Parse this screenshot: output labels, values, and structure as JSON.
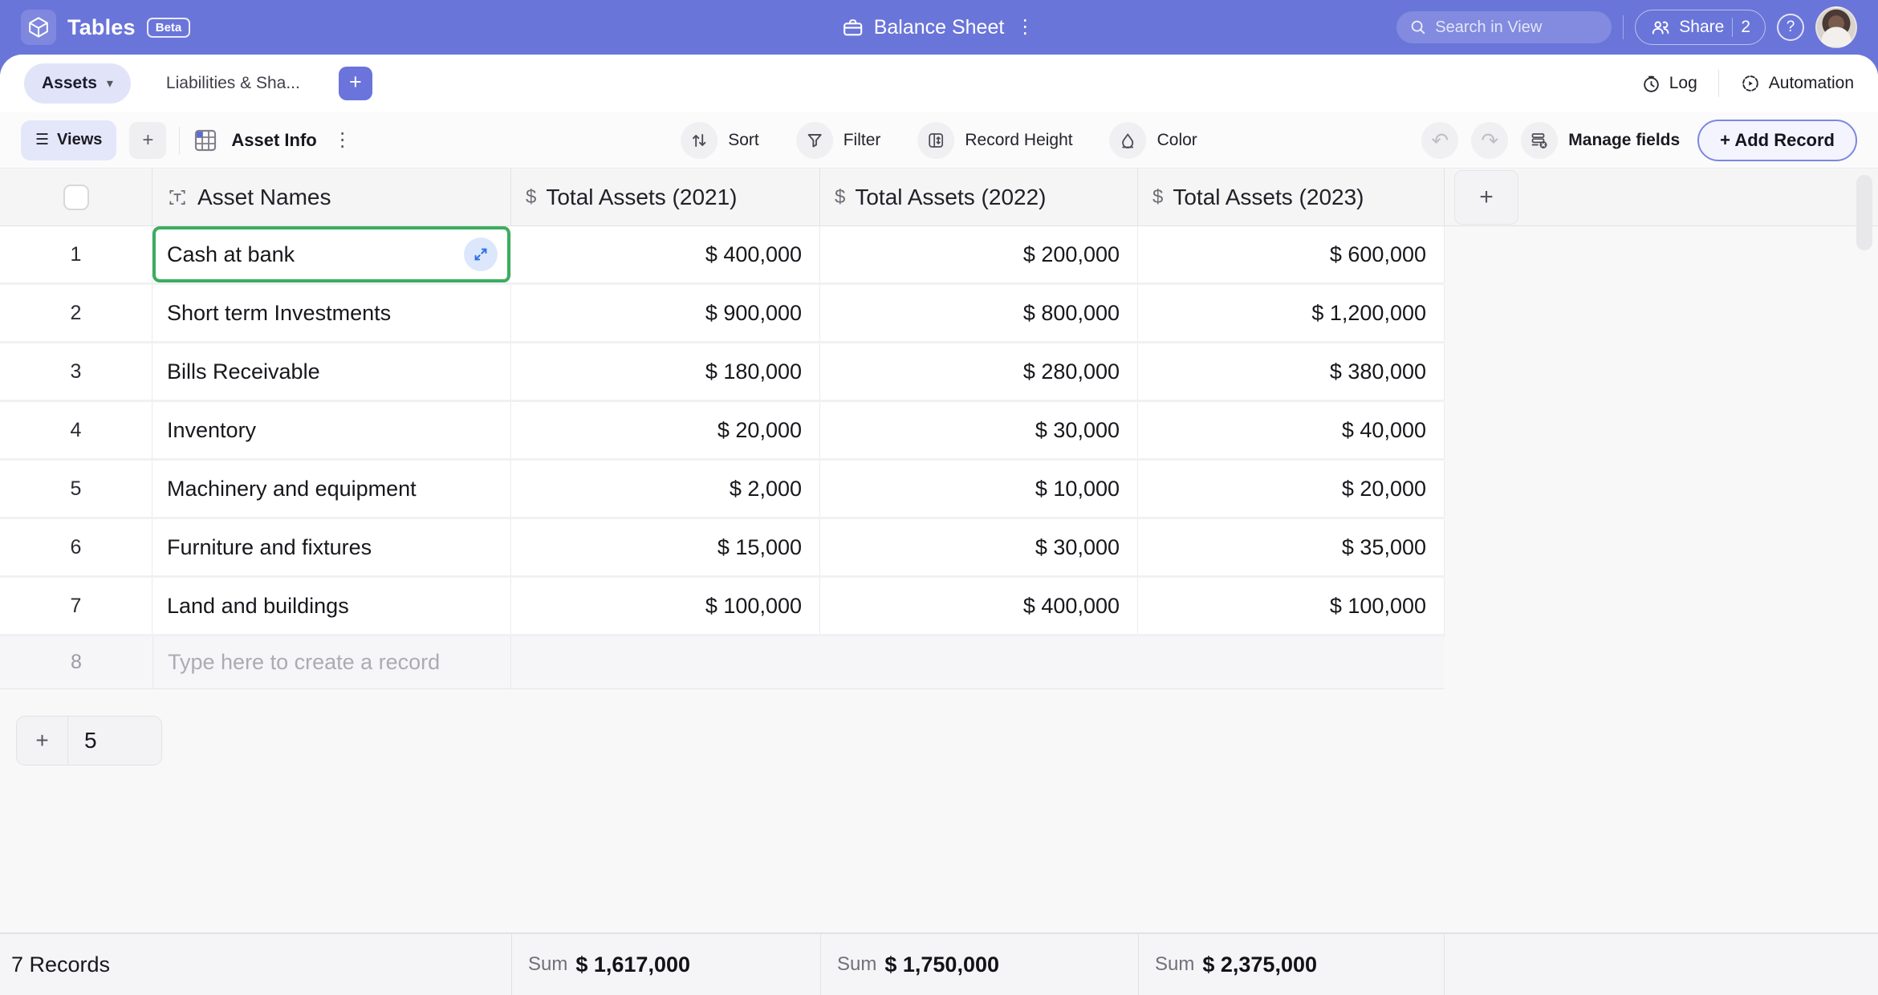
{
  "topbar": {
    "app_name": "Tables",
    "beta_badge": "Beta",
    "doc_title": "Balance Sheet",
    "search_placeholder": "Search in View",
    "share_label": "Share",
    "share_count": "2",
    "help_glyph": "?"
  },
  "tabs": {
    "active_label": "Assets",
    "inactive_label": "Liabilities & Sha...",
    "add_glyph": "+",
    "log_label": "Log",
    "automation_label": "Automation"
  },
  "toolbar": {
    "views_label": "Views",
    "add_view_glyph": "+",
    "view_name": "Asset Info",
    "sort_label": "Sort",
    "filter_label": "Filter",
    "record_height_label": "Record Height",
    "color_label": "Color",
    "undo_glyph": "↶",
    "redo_glyph": "↷",
    "manage_fields_label": "Manage fields",
    "add_record_label": "+ Add Record"
  },
  "icons": {
    "kebab": "⋮",
    "chevron_down": "▾",
    "hamburger": "☰",
    "dollar": "$",
    "plus": "+"
  },
  "table": {
    "columns": [
      {
        "label": "Asset Names",
        "type": "text"
      },
      {
        "label": "Total Assets (2021)",
        "type": "currency"
      },
      {
        "label": "Total Assets (2022)",
        "type": "currency"
      },
      {
        "label": "Total Assets (2023)",
        "type": "currency"
      }
    ],
    "add_column_glyph": "+",
    "rows": [
      {
        "num": "1",
        "name": "Cash at bank",
        "y2021": "$ 400,000",
        "y2022": "$ 200,000",
        "y2023": "$ 600,000"
      },
      {
        "num": "2",
        "name": "Short term Investments",
        "y2021": "$ 900,000",
        "y2022": "$ 800,000",
        "y2023": "$ 1,200,000"
      },
      {
        "num": "3",
        "name": "Bills Receivable",
        "y2021": "$ 180,000",
        "y2022": "$ 280,000",
        "y2023": "$ 380,000"
      },
      {
        "num": "4",
        "name": "Inventory",
        "y2021": "$ 20,000",
        "y2022": "$ 30,000",
        "y2023": "$ 40,000"
      },
      {
        "num": "5",
        "name": "Machinery and equipment",
        "y2021": "$ 2,000",
        "y2022": "$ 10,000",
        "y2023": "$ 20,000"
      },
      {
        "num": "6",
        "name": "Furniture and fixtures",
        "y2021": "$ 15,000",
        "y2022": "$ 30,000",
        "y2023": "$ 35,000"
      },
      {
        "num": "7",
        "name": "Land and buildings",
        "y2021": "$ 100,000",
        "y2022": "$ 400,000",
        "y2023": "$ 100,000"
      }
    ],
    "selected_row_index": 0,
    "new_row": {
      "num": "8",
      "placeholder": "Type here to create a record"
    },
    "add_rows": {
      "plus_glyph": "+",
      "count": "5"
    }
  },
  "footer": {
    "records_label": "7 Records",
    "sum_label": "Sum",
    "sums": [
      "$ 1,617,000",
      "$ 1,750,000",
      "$ 2,375,000"
    ]
  },
  "colors": {
    "brand_purple": "#6A75D9",
    "active_tab_bg": "#E1E4F8",
    "selection_green": "#3CAD5E",
    "expand_blue": "#2F6FE4",
    "add_record_border": "#7C87E2"
  }
}
